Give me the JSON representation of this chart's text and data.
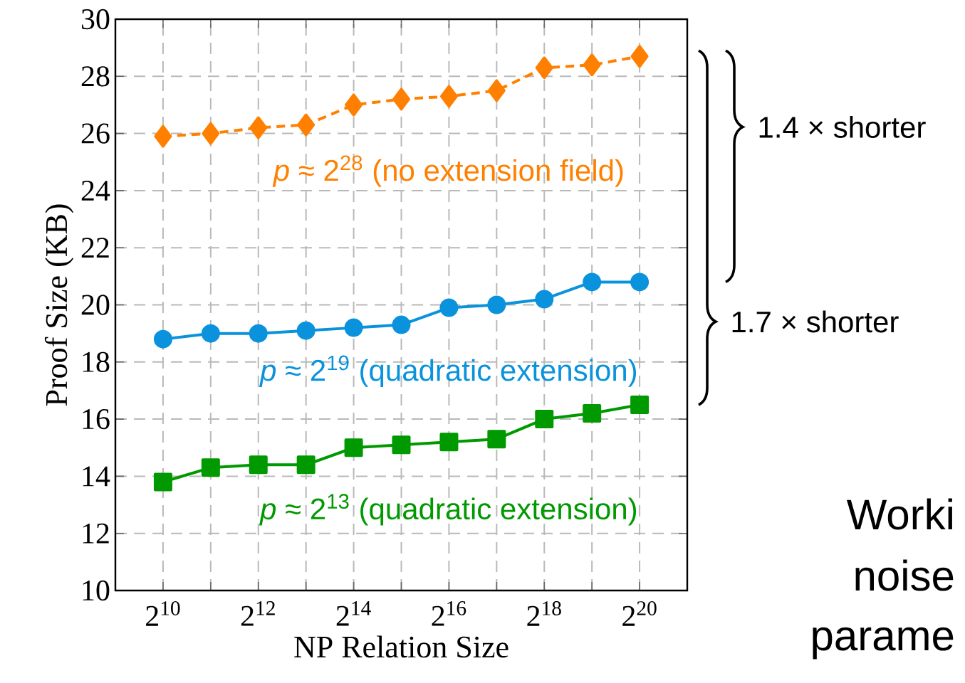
{
  "chart_data": {
    "type": "line",
    "xlabel": "NP Relation Size",
    "ylabel": "Proof Size (KB)",
    "x": [
      1024,
      2048,
      4096,
      8192,
      16384,
      32768,
      65536,
      131072,
      262144,
      524288,
      1048576
    ],
    "series": [
      {
        "name": "*p* ≈ 2$^{28}$ (no extension field)",
        "color": "#ff8000",
        "marker": "diamond",
        "line_style": "dashed",
        "values": [
          25.9,
          26.0,
          26.2,
          26.3,
          27.0,
          27.2,
          27.3,
          27.5,
          28.3,
          28.4,
          28.7
        ]
      },
      {
        "name": "*p* ≈ 2$^{19}$ (quadratic extension)",
        "color": "#0a93dc",
        "marker": "circle",
        "line_style": "solid",
        "values": [
          18.8,
          19.0,
          19.0,
          19.1,
          19.2,
          19.3,
          19.9,
          20.0,
          20.2,
          20.8,
          20.8
        ]
      },
      {
        "name": "*p* ≈ 2$^{13}$ (quadratic extension)",
        "color": "#009900",
        "marker": "square",
        "line_style": "solid",
        "values": [
          13.8,
          14.3,
          14.4,
          14.4,
          15.0,
          15.1,
          15.2,
          15.3,
          16.0,
          16.2,
          16.5
        ]
      }
    ],
    "log": "x",
    "xlim": [
      512,
      2097152
    ],
    "xticks": [
      {
        "value": 1024,
        "label": "2$^{10}$"
      },
      {
        "value": 2048,
        "label": null
      },
      {
        "value": 4096,
        "label": "2$^{12}$"
      },
      {
        "value": 8192,
        "label": null
      },
      {
        "value": 16384,
        "label": "2$^{14}$"
      },
      {
        "value": 32768,
        "label": null
      },
      {
        "value": 65536,
        "label": "2$^{16}$"
      },
      {
        "value": 131072,
        "label": null
      },
      {
        "value": 262144,
        "label": "2$^{18}$"
      },
      {
        "value": 524288,
        "label": null
      },
      {
        "value": 1048576,
        "label": "2$^{20}$"
      }
    ],
    "ylim": [
      10,
      30
    ],
    "yticks": [
      10,
      12,
      14,
      16,
      18,
      20,
      22,
      24,
      26,
      28,
      30
    ],
    "grid": true,
    "legend": false,
    "annotations": [
      "1.4 × shorter",
      "1.7 × shorter",
      "Worki",
      "noise",
      "parame"
    ]
  }
}
